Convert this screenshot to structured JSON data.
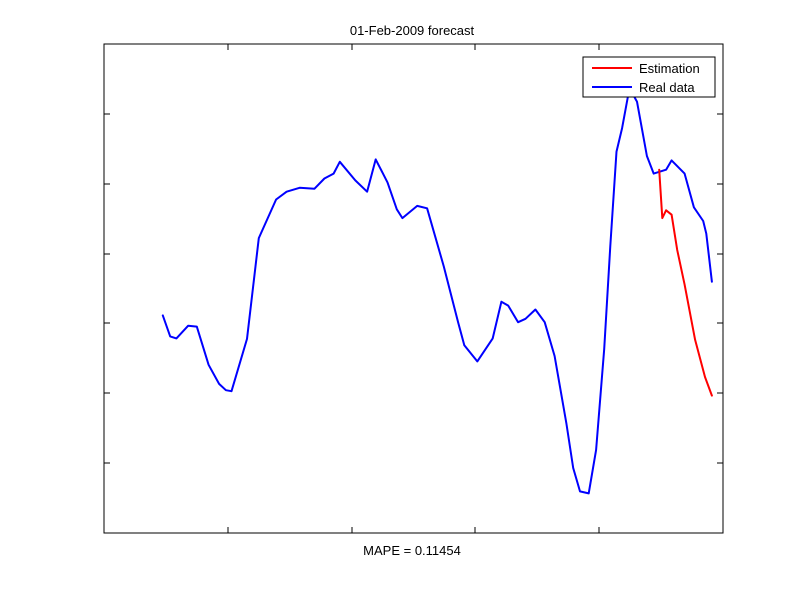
{
  "chart_data": {
    "type": "line",
    "title": "01-Feb-2009 forecast",
    "xlabel": "MAPE = 0.11454",
    "ylabel": "",
    "xlim": [
      0,
      100
    ],
    "ylim": [
      0,
      100
    ],
    "grid": false,
    "legend_position": "top-right",
    "colors": {
      "estimation": "#ff0000",
      "real_data": "#0000ff",
      "axes": "#000000",
      "background": "#ffffff"
    },
    "series": [
      {
        "name": "Real data",
        "color": "#0000ff",
        "x": [
          9.5,
          10.7,
          11.7,
          13.6,
          15.0,
          16.9,
          18.6,
          19.7,
          20.6,
          23.1,
          25.0,
          27.8,
          29.5,
          31.6,
          34.0,
          35.6,
          37.1,
          38.1,
          40.6,
          42.5,
          43.9,
          45.8,
          47.3,
          48.2,
          50.6,
          52.2,
          54.9,
          57.2,
          58.2,
          60.3,
          62.8,
          64.2,
          65.3,
          66.9,
          68.1,
          69.7,
          71.2,
          72.8,
          74.7,
          75.8,
          76.9,
          78.3,
          79.5,
          80.8,
          81.8,
          82.8,
          83.7,
          84.9,
          86.1,
          87.7,
          88.8,
          90.8,
          91.7,
          93.8,
          95.3,
          96.8,
          97.3,
          98.2
        ],
        "y": [
          44.5,
          40.2,
          39.8,
          42.4,
          42.2,
          34.4,
          30.5,
          29.2,
          29.0,
          39.7,
          60.3,
          68.2,
          69.8,
          70.6,
          70.4,
          72.5,
          73.5,
          75.9,
          72.1,
          69.8,
          76.4,
          71.7,
          66.2,
          64.4,
          66.9,
          66.4,
          54.5,
          43.1,
          38.4,
          35.1,
          39.8,
          47.3,
          46.5,
          43.1,
          43.8,
          45.7,
          43.1,
          36.2,
          22.4,
          13.3,
          8.5,
          8.1,
          17.0,
          37.6,
          58.7,
          78.0,
          82.8,
          91.0,
          88.2,
          77.1,
          73.5,
          74.3,
          76.2,
          73.5,
          66.6,
          63.8,
          61.2,
          51.4
        ]
      },
      {
        "name": "Estimation",
        "color": "#ff0000",
        "x": [
          89.7,
          90.2,
          90.8,
          91.7,
          92.6,
          93.8,
          95.5,
          97.1,
          98.2
        ],
        "y": [
          74.3,
          64.4,
          66.0,
          65.1,
          57.9,
          50.8,
          39.5,
          31.9,
          28.1
        ]
      }
    ]
  }
}
